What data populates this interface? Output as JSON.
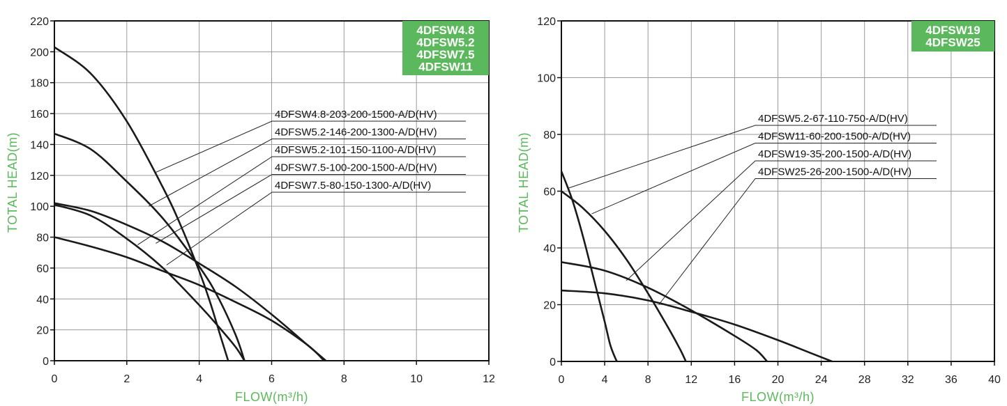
{
  "chart_data": [
    {
      "type": "line",
      "xlabel": "FLOW(m³/h)",
      "ylabel": "TOTAL HEAD(m)",
      "xlim": [
        0,
        12
      ],
      "ylim": [
        0,
        220
      ],
      "xticks": [
        0,
        2,
        4,
        6,
        8,
        10,
        12
      ],
      "yticks": [
        0,
        20,
        40,
        60,
        80,
        100,
        120,
        140,
        160,
        180,
        200,
        220
      ],
      "grid": true,
      "models_badge": [
        "4DFSW4.8",
        "4DFSW5.2",
        "4DFSW7.5",
        "4DFSW11"
      ],
      "badge_color": "#5cb85c",
      "series": [
        {
          "name": "4DFSW4.8-203-200-1500-A/D(HV)",
          "x": [
            0,
            1,
            2,
            3,
            3.5,
            4,
            4.3,
            4.6,
            4.8
          ],
          "y": [
            203,
            186,
            155,
            112,
            87,
            58,
            38,
            15,
            0
          ],
          "leader_at": [
            2.8,
            122
          ]
        },
        {
          "name": "4DFSW5.2-146-200-1300-A/D(HV)",
          "x": [
            0,
            1,
            2,
            3,
            4,
            4.5,
            5,
            5.25
          ],
          "y": [
            147,
            137,
            116,
            92,
            61,
            42,
            17,
            0
          ],
          "leader_at": [
            2.6,
            100
          ]
        },
        {
          "name": "4DFSW5.2-101-150-1100-A/D(HV)",
          "x": [
            0,
            1,
            2,
            3,
            4,
            4.5,
            5,
            5.25
          ],
          "y": [
            101,
            94,
            79,
            60,
            36,
            23,
            9,
            0
          ],
          "leader_at": [
            2.3,
            75
          ]
        },
        {
          "name": "4DFSW7.5-100-200-1500-A/D(HV)",
          "x": [
            0,
            1,
            2,
            3,
            4,
            5,
            6,
            7,
            7.5
          ],
          "y": [
            102,
            97,
            88,
            77,
            63,
            48,
            30,
            10,
            0
          ],
          "leader_at": [
            2.8,
            76
          ]
        },
        {
          "name": "4DFSW7.5-80-150-1300-A/D(HV)",
          "x": [
            0,
            1,
            2,
            3,
            4,
            5,
            6,
            7,
            7.45
          ],
          "y": [
            80,
            74,
            67,
            58,
            49,
            38,
            26,
            10,
            0
          ],
          "leader_at": [
            3.1,
            62
          ]
        }
      ]
    },
    {
      "type": "line",
      "xlabel": "FLOW(m³/h)",
      "ylabel": "TOTAL HEAD(m)",
      "xlim": [
        0,
        40
      ],
      "ylim": [
        0,
        120
      ],
      "xticks": [
        0,
        4,
        8,
        12,
        16,
        20,
        24,
        28,
        32,
        36,
        40
      ],
      "yticks": [
        0,
        20,
        40,
        60,
        80,
        100,
        120
      ],
      "grid": true,
      "models_badge": [
        "4DFSW19",
        "4DFSW25"
      ],
      "badge_color": "#5cb85c",
      "series": [
        {
          "name": "4DFSW5.2-67-110-750-A/D(HV)",
          "x": [
            0,
            1,
            2,
            3,
            4,
            4.5,
            5,
            5.15
          ],
          "y": [
            67,
            57,
            44,
            29,
            14,
            6,
            1,
            0
          ],
          "leader_at": [
            0.6,
            61
          ]
        },
        {
          "name": "4DFSW11-60-200-1500-A/D(HV)",
          "x": [
            0,
            2,
            4,
            6,
            8,
            10,
            11,
            11.5
          ],
          "y": [
            60,
            54,
            46,
            36,
            24,
            11,
            4,
            0
          ],
          "leader_at": [
            2.8,
            52
          ]
        },
        {
          "name": "4DFSW19-35-200-1500-A/D(HV)",
          "x": [
            0,
            4,
            8,
            12,
            16,
            18,
            19
          ],
          "y": [
            35,
            32,
            26,
            18,
            9,
            4,
            0
          ],
          "leader_at": [
            6,
            28.5
          ]
        },
        {
          "name": "4DFSW25-26-200-1500-A/D(HV)",
          "x": [
            0,
            4,
            8,
            12,
            16,
            20,
            23,
            25
          ],
          "y": [
            25,
            24,
            21.5,
            17.5,
            13,
            7.5,
            3,
            0
          ],
          "leader_at": [
            9,
            20
          ]
        }
      ]
    }
  ]
}
